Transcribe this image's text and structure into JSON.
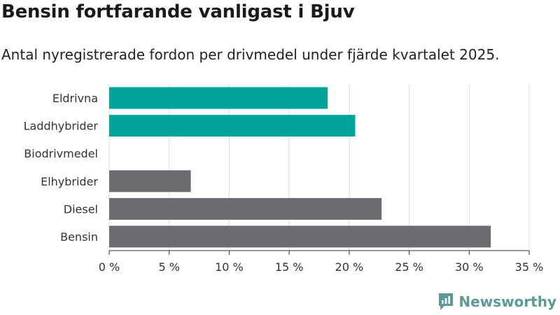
{
  "header": {
    "title": "Bensin fortfarande vanligast i Bjuv",
    "subtitle": "Antal nyregistrerade fordon per drivmedel under fjärde kvartalet 2025."
  },
  "chart_data": {
    "type": "bar",
    "orientation": "horizontal",
    "title": "Bensin fortfarande vanligast i Bjuv",
    "subtitle": "Antal nyregistrerade fordon per drivmedel under fjärde kvartalet 2025.",
    "categories": [
      "Eldrivna",
      "Laddhybrider",
      "Biodrivmedel",
      "Elhybrider",
      "Diesel",
      "Bensin"
    ],
    "values": [
      18.2,
      20.5,
      0,
      6.8,
      22.7,
      31.8
    ],
    "bar_colors": [
      "#00a39a",
      "#00a39a",
      "#6d6b72",
      "#6d6b72",
      "#6d6b72",
      "#6d6b72"
    ],
    "xlim": [
      0,
      35
    ],
    "xticks": [
      0,
      5,
      10,
      15,
      20,
      25,
      30,
      35
    ],
    "xtick_labels": [
      "0 %",
      "5 %",
      "10 %",
      "15 %",
      "20 %",
      "25 %",
      "30 %",
      "35 %"
    ],
    "xlabel": "",
    "ylabel": "",
    "grid": "vertical",
    "legend": "none"
  },
  "branding": {
    "logo_text": "Newsworthy",
    "logo_color": "#5a9a97"
  }
}
